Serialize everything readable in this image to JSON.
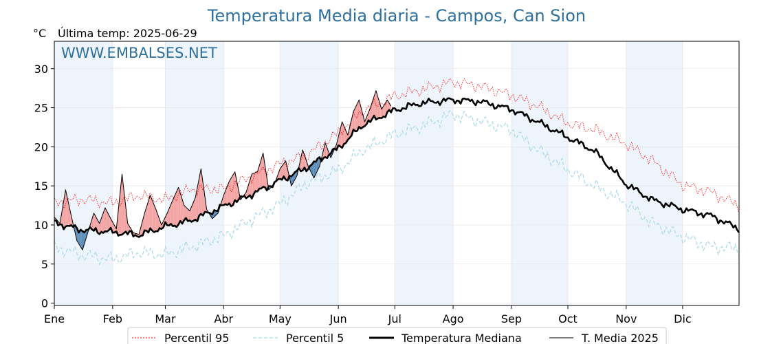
{
  "chart_data": {
    "type": "line",
    "title": "Temperatura Media diaria - Campos, Can Sion",
    "unit_label": "°C",
    "last_temp_label": "Última temp: 2025-06-29",
    "watermark": "WWW.EMBALSES.NET",
    "xlabel": "",
    "ylabel": "",
    "x_ticks": [
      "Ene",
      "Feb",
      "Mar",
      "Abr",
      "May",
      "Jun",
      "Jul",
      "Ago",
      "Sep",
      "Oct",
      "Nov",
      "Dic"
    ],
    "x_tick_days": [
      1,
      32,
      60,
      91,
      121,
      152,
      182,
      213,
      244,
      274,
      305,
      335
    ],
    "y_ticks": [
      0,
      5,
      10,
      15,
      20,
      25,
      30
    ],
    "ylim": [
      -0.3,
      33.5
    ],
    "xlim": [
      1,
      365
    ],
    "grid": true,
    "legend_position": "bottom",
    "colors": {
      "p95": "#ff0000",
      "p5": "#a8d8e8",
      "median": "#000000",
      "t2025": "#000000",
      "above_fill": "#f4a3a3",
      "below_fill": "#5b8db8",
      "band": "#eef4fb",
      "title": "#2e6f9e"
    },
    "series": [
      {
        "name": "Percentil 95",
        "style": "dotted",
        "x": [
          1,
          15,
          32,
          46,
          60,
          74,
          91,
          105,
          121,
          135,
          152,
          165,
          182,
          196,
          213,
          227,
          244,
          258,
          274,
          288,
          305,
          319,
          335,
          350,
          365
        ],
        "values": [
          12.8,
          13.3,
          12.8,
          13.8,
          13.2,
          14.6,
          14.6,
          16.1,
          17.8,
          18.9,
          21.8,
          24.6,
          26.5,
          27.3,
          28.3,
          27.8,
          26.6,
          25.2,
          23.0,
          22.2,
          20.4,
          18.2,
          15.1,
          14.2,
          12.5
        ]
      },
      {
        "name": "Percentil 5",
        "style": "dashed",
        "x": [
          1,
          15,
          32,
          46,
          60,
          74,
          91,
          105,
          121,
          135,
          152,
          165,
          182,
          196,
          213,
          227,
          244,
          258,
          274,
          288,
          305,
          319,
          335,
          350,
          365
        ],
        "values": [
          7.2,
          6.2,
          5.6,
          6.5,
          6.2,
          7.2,
          8.6,
          10.6,
          12.7,
          15.3,
          17.0,
          19.6,
          21.6,
          22.6,
          24.2,
          23.3,
          22.2,
          19.6,
          17.1,
          15.0,
          12.8,
          10.2,
          8.5,
          7.2,
          7.0
        ]
      },
      {
        "name": "Temperatura Mediana",
        "style": "thick",
        "x": [
          1,
          15,
          32,
          46,
          60,
          74,
          91,
          105,
          121,
          135,
          152,
          165,
          182,
          196,
          213,
          227,
          244,
          258,
          274,
          288,
          305,
          319,
          335,
          350,
          365
        ],
        "values": [
          10.3,
          9.4,
          9.1,
          8.7,
          9.8,
          10.6,
          12.4,
          13.8,
          15.7,
          17.3,
          19.8,
          22.8,
          24.7,
          25.6,
          26.0,
          25.8,
          24.8,
          23.2,
          21.2,
          19.5,
          15.2,
          13.2,
          12.0,
          11.2,
          9.5
        ]
      },
      {
        "name": "T. Media 2025",
        "style": "thin",
        "x": [
          1,
          4,
          7,
          10,
          13,
          16,
          19,
          22,
          25,
          28,
          31,
          34,
          37,
          40,
          43,
          46,
          49,
          52,
          55,
          58,
          61,
          64,
          67,
          70,
          73,
          76,
          79,
          82,
          85,
          88,
          91,
          94,
          97,
          100,
          103,
          106,
          109,
          112,
          115,
          118,
          121,
          124,
          127,
          130,
          133,
          136,
          139,
          142,
          145,
          148,
          151,
          154,
          157,
          160,
          163,
          166,
          169,
          172,
          175,
          178,
          180
        ],
        "values": [
          11.0,
          10.2,
          14.5,
          11.2,
          8.0,
          6.8,
          9.2,
          11.5,
          10.2,
          12.2,
          10.8,
          9.5,
          16.5,
          10.2,
          9.0,
          8.8,
          11.5,
          13.8,
          12.0,
          10.0,
          11.5,
          13.2,
          14.8,
          12.5,
          11.8,
          13.5,
          17.2,
          12.0,
          10.8,
          11.5,
          13.8,
          15.6,
          16.8,
          13.2,
          14.2,
          16.5,
          16.8,
          19.2,
          14.5,
          15.2,
          17.2,
          18.2,
          15.0,
          16.3,
          19.6,
          17.5,
          16.0,
          17.5,
          20.5,
          18.6,
          20.3,
          23.2,
          21.5,
          24.5,
          26.0,
          23.2,
          25.0,
          27.2,
          24.8,
          26.0,
          25.2
        ]
      }
    ]
  },
  "legend": {
    "items": [
      "Percentil 95",
      "Percentil 5",
      "Temperatura Mediana",
      "T. Media 2025"
    ]
  }
}
